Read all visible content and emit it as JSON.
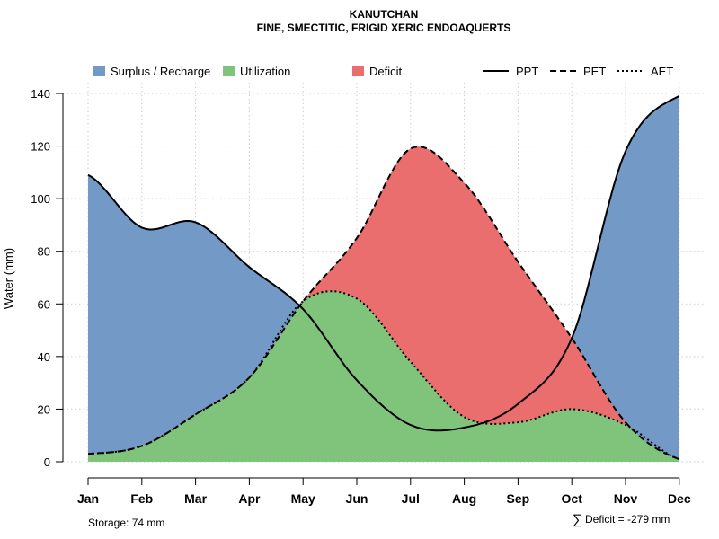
{
  "chart_data": {
    "type": "area",
    "title": "KANUTCHAN",
    "subtitle": "FINE, SMECTITIC, FRIGID XERIC ENDOAQUERTS",
    "ylabel": "Water (mm)",
    "xlabel": "",
    "ylim": [
      0,
      140
    ],
    "yticks": [
      0,
      20,
      40,
      60,
      80,
      100,
      120,
      140
    ],
    "categories": [
      "Jan",
      "Feb",
      "Mar",
      "Apr",
      "May",
      "Jun",
      "Jul",
      "Aug",
      "Sep",
      "Oct",
      "Nov",
      "Dec"
    ],
    "grid": true,
    "legend_position": "top",
    "series": [
      {
        "name": "PPT",
        "style": "solid",
        "values": [
          109,
          89,
          91,
          74,
          58,
          31,
          14,
          13,
          22,
          47,
          118,
          139
        ]
      },
      {
        "name": "PET",
        "style": "dashed",
        "values": [
          3,
          6,
          18,
          32,
          61,
          85,
          119,
          106,
          76,
          47,
          15,
          1
        ]
      },
      {
        "name": "AET",
        "style": "dotted",
        "values": [
          3,
          6,
          18,
          32,
          61,
          62,
          38,
          17,
          15,
          20,
          14,
          1
        ]
      }
    ],
    "areas": [
      {
        "name": "Surplus / Recharge",
        "color": "#7399c7"
      },
      {
        "name": "Utilization",
        "color": "#80c47c"
      },
      {
        "name": "Deficit",
        "color": "#eb6e6e"
      }
    ],
    "annotations": {
      "storage": "Storage: 74 mm",
      "deficit_symbol": "∑",
      "deficit": "Deficit = -279 mm"
    }
  }
}
